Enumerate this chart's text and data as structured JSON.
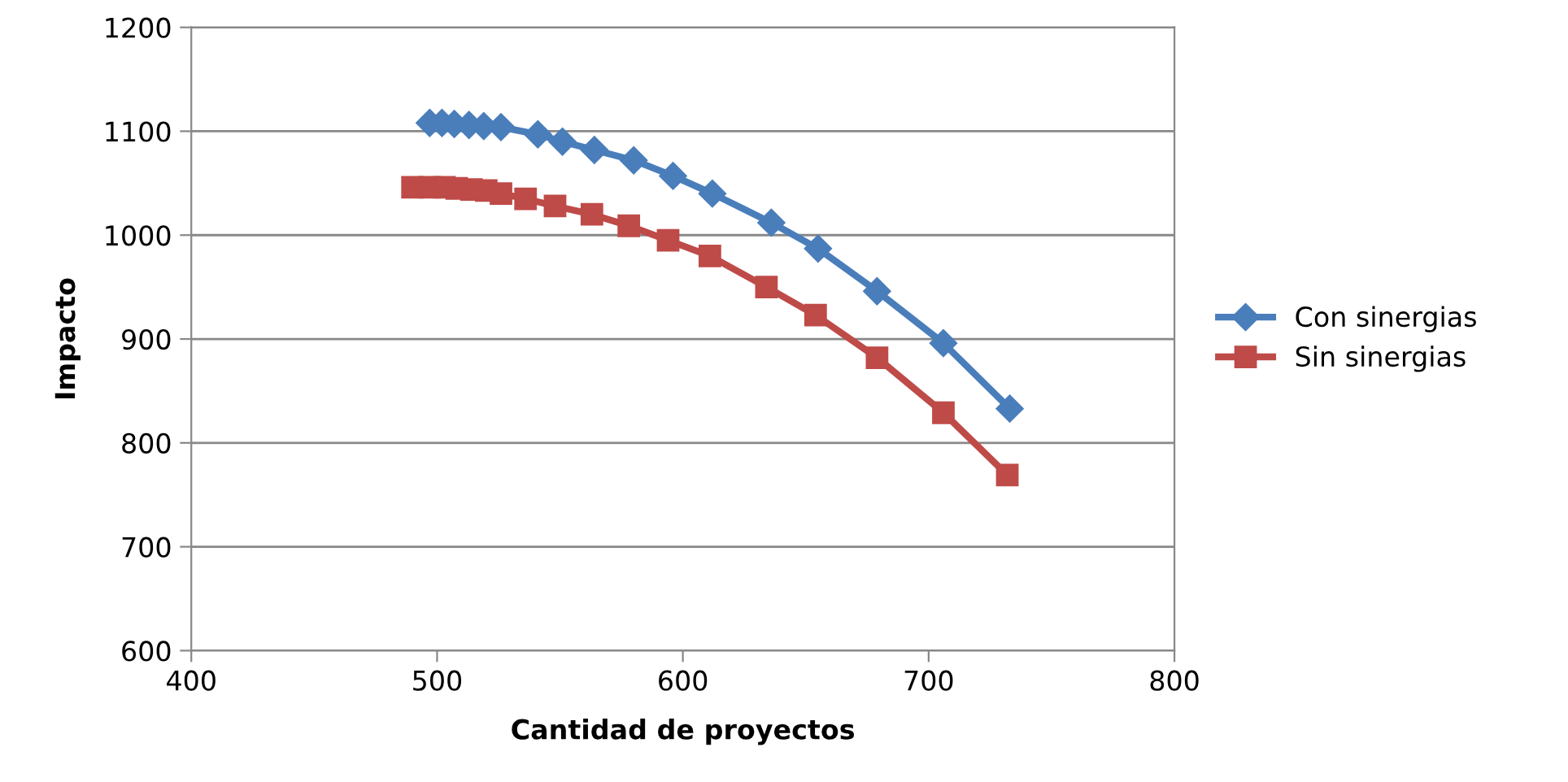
{
  "chart_data": {
    "type": "line",
    "xlabel": "Cantidad de proyectos",
    "ylabel": "Impacto",
    "xlim": [
      400,
      800
    ],
    "xticks": [
      400,
      500,
      600,
      700,
      800
    ],
    "ylim": [
      600,
      1200
    ],
    "yticks": [
      600,
      700,
      800,
      900,
      1000,
      1100,
      1200
    ],
    "grid": "y",
    "legend": "right",
    "line_style": "solid",
    "series": [
      {
        "name": "Con sinergias",
        "color": "#4a7ebb",
        "marker": "diamond",
        "x": [
          497,
          502,
          507,
          513,
          519,
          526,
          541,
          551,
          564,
          580,
          596,
          612,
          636,
          655,
          679,
          706,
          733
        ],
        "values": [
          1108,
          1108,
          1107,
          1106,
          1105,
          1104,
          1097,
          1090,
          1082,
          1072,
          1057,
          1040,
          1012,
          987,
          946,
          896,
          833
        ]
      },
      {
        "name": "Sin sinergias",
        "color": "#be4b48",
        "marker": "square",
        "x": [
          490,
          497,
          503,
          508,
          514,
          520,
          526,
          536,
          548,
          563,
          578,
          594,
          611,
          634,
          654,
          679,
          706,
          732
        ],
        "values": [
          1046,
          1046,
          1046,
          1045,
          1044,
          1043,
          1040,
          1035,
          1028,
          1020,
          1009,
          995,
          980,
          950,
          923,
          882,
          829,
          769
        ]
      }
    ]
  }
}
